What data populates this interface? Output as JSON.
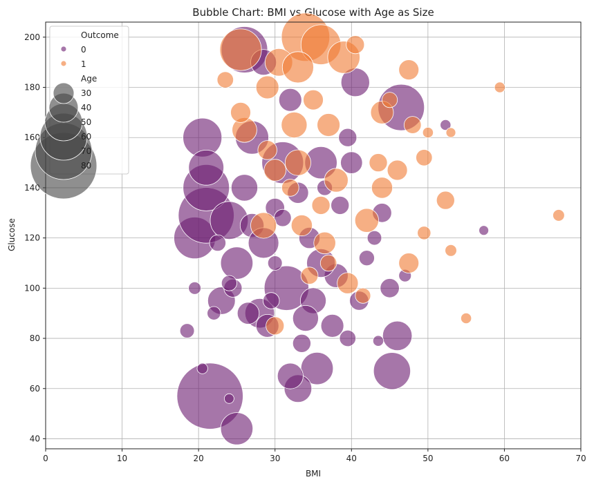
{
  "chart_data": {
    "type": "scatter",
    "title": "Bubble Chart: BMI vs Glucose with Age as Size",
    "xlabel": "BMI",
    "ylabel": "Glucose",
    "xlim": [
      0,
      70
    ],
    "ylim": [
      36,
      206
    ],
    "xticks": [
      0,
      10,
      20,
      30,
      40,
      50,
      60,
      70
    ],
    "yticks": [
      40,
      60,
      80,
      100,
      120,
      140,
      160,
      180,
      200
    ],
    "grid": true,
    "legend_position": "top-left",
    "hue_title": "Outcome",
    "size_title": "Age",
    "hue_levels": [
      {
        "label": "0",
        "color": "#6a1b70"
      },
      {
        "label": "1",
        "color": "#f07a32"
      }
    ],
    "size_levels": [
      "30",
      "40",
      "50",
      "60",
      "70",
      "80"
    ],
    "series": [
      {
        "name": "0",
        "color": "#6a1b70",
        "points": [
          [
            21.5,
            57,
            81
          ],
          [
            25,
            44,
            45
          ],
          [
            45.3,
            67,
            50
          ],
          [
            35.5,
            68,
            45
          ],
          [
            33,
            60,
            40
          ],
          [
            32,
            65,
            38
          ],
          [
            18.5,
            83,
            26
          ],
          [
            20.5,
            68,
            22
          ],
          [
            46,
            81,
            42
          ],
          [
            43.5,
            79,
            22
          ],
          [
            24,
            56,
            21
          ],
          [
            39.5,
            80,
            28
          ],
          [
            19.5,
            120,
            55
          ],
          [
            21,
            129,
            70
          ],
          [
            21,
            140,
            60
          ],
          [
            20.5,
            160,
            52
          ],
          [
            21,
            148,
            48
          ],
          [
            26,
            195,
            60
          ],
          [
            28.5,
            190,
            38
          ],
          [
            40.5,
            182,
            41
          ],
          [
            46.5,
            172,
            60
          ],
          [
            36,
            150,
            45
          ],
          [
            31,
            150,
            55
          ],
          [
            24,
            127,
            51
          ],
          [
            25,
            110,
            45
          ],
          [
            23,
            95,
            40
          ],
          [
            28,
            90,
            42
          ],
          [
            31.5,
            100,
            58
          ],
          [
            35,
            95,
            38
          ],
          [
            38,
            105,
            36
          ],
          [
            27,
            125,
            36
          ],
          [
            30,
            132,
            31
          ],
          [
            33,
            138,
            33
          ],
          [
            38.5,
            133,
            30
          ],
          [
            42,
            112,
            27
          ],
          [
            45,
            100,
            31
          ],
          [
            29,
            85,
            35
          ],
          [
            34,
            88,
            38
          ],
          [
            36,
            110,
            41
          ],
          [
            27,
            160,
            46
          ],
          [
            32,
            175,
            35
          ],
          [
            39.5,
            160,
            30
          ],
          [
            24.5,
            100,
            30
          ],
          [
            22,
            90,
            25
          ],
          [
            19.5,
            100,
            24
          ],
          [
            30,
            110,
            26
          ],
          [
            34.5,
            120,
            33
          ],
          [
            41,
            95,
            31
          ],
          [
            26,
            140,
            39
          ],
          [
            28.5,
            118,
            43
          ],
          [
            22.5,
            118,
            28
          ],
          [
            37.5,
            85,
            35
          ],
          [
            44,
            130,
            31
          ],
          [
            47,
            105,
            24
          ],
          [
            52.3,
            165,
            22
          ],
          [
            57.3,
            123,
            21
          ],
          [
            26.5,
            90,
            34
          ],
          [
            33.5,
            78,
            30
          ],
          [
            29.5,
            95,
            28
          ],
          [
            24,
            102,
            27
          ],
          [
            31,
            128,
            29
          ],
          [
            36.5,
            140,
            27
          ],
          [
            43,
            120,
            26
          ],
          [
            40,
            150,
            34
          ]
        ]
      },
      {
        "name": "1",
        "color": "#f07a32",
        "points": [
          [
            34,
            200,
            62
          ],
          [
            25.5,
            195,
            55
          ],
          [
            36,
            197,
            53
          ],
          [
            39,
            192,
            45
          ],
          [
            30.5,
            190,
            40
          ],
          [
            33,
            188,
            44
          ],
          [
            47.5,
            187,
            32
          ],
          [
            44,
            170,
            35
          ],
          [
            37,
            165,
            35
          ],
          [
            32.5,
            165,
            38
          ],
          [
            26,
            163,
            37
          ],
          [
            30,
            147,
            34
          ],
          [
            33,
            150,
            38
          ],
          [
            38,
            143,
            36
          ],
          [
            46,
            147,
            32
          ],
          [
            52.3,
            135,
            30
          ],
          [
            49.5,
            152,
            28
          ],
          [
            47.5,
            110,
            32
          ],
          [
            39.5,
            102,
            33
          ],
          [
            30,
            85,
            30
          ],
          [
            33.5,
            125,
            33
          ],
          [
            28.5,
            125,
            38
          ],
          [
            42,
            127,
            36
          ],
          [
            36.5,
            118,
            34
          ],
          [
            41.5,
            97,
            27
          ],
          [
            49.5,
            122,
            25
          ],
          [
            53,
            115,
            23
          ],
          [
            55,
            88,
            22
          ],
          [
            59.4,
            180,
            22
          ],
          [
            67.1,
            129,
            23
          ],
          [
            53,
            162,
            21
          ],
          [
            50,
            162,
            22
          ],
          [
            25.5,
            170,
            32
          ],
          [
            29,
            180,
            35
          ],
          [
            23.5,
            183,
            28
          ],
          [
            40.5,
            197,
            30
          ],
          [
            35,
            175,
            32
          ],
          [
            37,
            110,
            28
          ],
          [
            44,
            140,
            33
          ],
          [
            29,
            155,
            31
          ],
          [
            43.5,
            150,
            30
          ],
          [
            32,
            140,
            29
          ],
          [
            36,
            133,
            30
          ],
          [
            48,
            165,
            29
          ],
          [
            45,
            175,
            27
          ],
          [
            34.5,
            105,
            29
          ]
        ]
      }
    ]
  }
}
